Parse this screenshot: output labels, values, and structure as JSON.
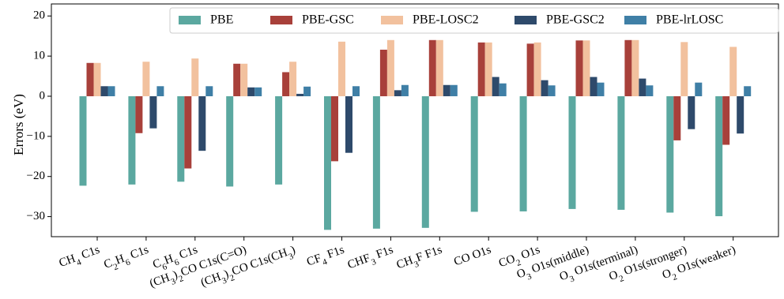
{
  "chart_data": {
    "type": "bar",
    "ylabel": "Errors (eV)",
    "ylim": [
      -35,
      23
    ],
    "yticks": [
      20,
      10,
      0,
      -10,
      -20,
      -30
    ],
    "legend_position": "top-right",
    "categories": [
      {
        "base": "CH",
        "sub": "4",
        "rest": " C1s"
      },
      {
        "base": "C",
        "sub": "2",
        "mid": "H",
        "sub2": "6",
        "rest": " C1s"
      },
      {
        "base": "C",
        "sub": "6",
        "mid": "H",
        "sub2": "6",
        "rest": " C1s"
      },
      {
        "base": "(CH",
        "sub": "3",
        "mid": ")",
        "sub2": "2",
        "rest": "CO C1s(C=O)"
      },
      {
        "base": "(CH",
        "sub": "3",
        "mid": ")",
        "sub2": "2",
        "rest": "CO C1s(CH",
        "sub3": "3",
        "tail": ")"
      },
      {
        "base": "CF",
        "sub": "4",
        "rest": " F1s"
      },
      {
        "base": "CHF",
        "sub": "3",
        "rest": " F1s"
      },
      {
        "base": "CH",
        "sub": "3",
        "rest": "F F1s"
      },
      {
        "base": "CO O1s"
      },
      {
        "base": "CO",
        "sub": "2",
        "rest": " O1s"
      },
      {
        "base": "O",
        "sub": "3",
        "rest": " O1s(middle)"
      },
      {
        "base": "O",
        "sub": "3",
        "rest": " O1s(terminal)"
      },
      {
        "base": "O",
        "sub": "2",
        "rest": " O1s(stronger)"
      },
      {
        "base": "O",
        "sub": "2",
        "rest": " O1s(weaker)"
      }
    ],
    "series": [
      {
        "name": "PBE",
        "color": "#5ba8a0",
        "values": [
          -22.3,
          -22.0,
          -21.3,
          -22.5,
          -22.0,
          -33.3,
          -33.0,
          -32.8,
          -28.8,
          -28.7,
          -28.1,
          -28.3,
          -29.0,
          -29.9
        ]
      },
      {
        "name": "PBE-GSC",
        "color": "#a8403a",
        "values": [
          8.3,
          -9.2,
          -18.0,
          8.1,
          6.0,
          -16.2,
          11.6,
          14.0,
          13.4,
          13.1,
          13.9,
          14.0,
          -11.0,
          -12.1
        ]
      },
      {
        "name": "PBE-LOSC2",
        "color": "#f2c19e",
        "values": [
          8.3,
          8.6,
          9.4,
          8.1,
          8.6,
          13.6,
          14.0,
          14.0,
          13.4,
          13.4,
          13.9,
          14.0,
          13.5,
          12.3
        ]
      },
      {
        "name": "PBE-GSC2",
        "color": "#2e4a6b",
        "values": [
          2.5,
          -8.0,
          -13.6,
          2.2,
          0.6,
          -14.1,
          1.5,
          2.8,
          4.8,
          4.0,
          4.8,
          4.4,
          -8.2,
          -9.3
        ]
      },
      {
        "name": "PBE-lrLOSC",
        "color": "#3f7fa6",
        "values": [
          2.5,
          2.5,
          2.5,
          2.2,
          2.4,
          2.5,
          2.8,
          2.8,
          3.2,
          2.7,
          3.4,
          2.7,
          3.4,
          2.5
        ]
      }
    ]
  }
}
